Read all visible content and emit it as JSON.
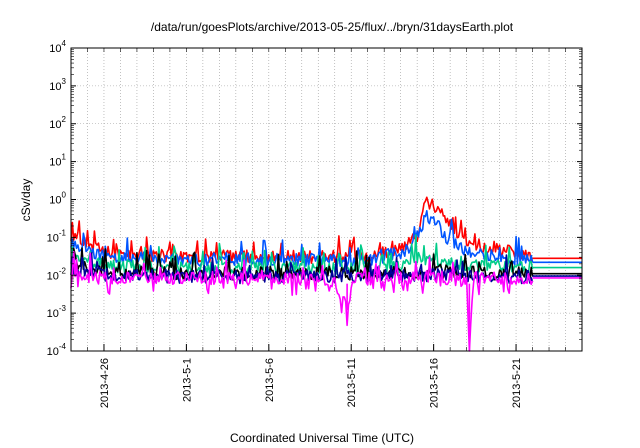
{
  "chart_data": {
    "type": "line",
    "title": "/data/run/goesPlots/archive/2013-05-25/flux/../bryn/31daysEarth.plot",
    "xlabel": "Coordinated Universal Time (UTC)",
    "ylabel": "cSv/day",
    "yscale": "log",
    "ylim": [
      0.0001,
      10000
    ],
    "y_ticks": [
      {
        "base": "10",
        "exp": "-4",
        "value": 0.0001
      },
      {
        "base": "10",
        "exp": "-3",
        "value": 0.001
      },
      {
        "base": "10",
        "exp": "-2",
        "value": 0.01
      },
      {
        "base": "10",
        "exp": "-1",
        "value": 0.1
      },
      {
        "base": "10",
        "exp": "0",
        "value": 1
      },
      {
        "base": "10",
        "exp": "1",
        "value": 10
      },
      {
        "base": "10",
        "exp": "2",
        "value": 100
      },
      {
        "base": "10",
        "exp": "3",
        "value": 1000
      },
      {
        "base": "10",
        "exp": "4",
        "value": 10000
      }
    ],
    "xlim": [
      "2013-04-24",
      "2013-05-25"
    ],
    "x_ticks": [
      "2013-4-26",
      "2013-5-1",
      "2013-5-6",
      "2013-5-11",
      "2013-5-16",
      "2013-5-21"
    ],
    "grid": true,
    "legend": "none",
    "data_end": "2013-05-22",
    "series": [
      {
        "color": "#ff0000",
        "points": [
          [
            "2013-04-24",
            0.12
          ],
          [
            "2013-04-25",
            0.07
          ],
          [
            "2013-04-26",
            0.04
          ],
          [
            "2013-04-28",
            0.035
          ],
          [
            "2013-05-01",
            0.03
          ],
          [
            "2013-05-04",
            0.032
          ],
          [
            "2013-05-07",
            0.03
          ],
          [
            "2013-05-10",
            0.032
          ],
          [
            "2013-05-12",
            0.03
          ],
          [
            "2013-05-14",
            0.05
          ],
          [
            "2013-05-15",
            0.1
          ],
          [
            "2013-05-15T12:00",
            0.9
          ],
          [
            "2013-05-16",
            0.7
          ],
          [
            "2013-05-16T12:00",
            0.4
          ],
          [
            "2013-05-17",
            0.2
          ],
          [
            "2013-05-18",
            0.08
          ],
          [
            "2013-05-19",
            0.06
          ],
          [
            "2013-05-20",
            0.05
          ],
          [
            "2013-05-21",
            0.04
          ],
          [
            "2013-05-22",
            0.03
          ]
        ],
        "flat": 0.028
      },
      {
        "color": "#0055ff",
        "points": [
          [
            "2013-04-24",
            0.08
          ],
          [
            "2013-04-25",
            0.05
          ],
          [
            "2013-04-26",
            0.03
          ],
          [
            "2013-04-28",
            0.028
          ],
          [
            "2013-05-01",
            0.025
          ],
          [
            "2013-05-04",
            0.027
          ],
          [
            "2013-05-07",
            0.025
          ],
          [
            "2013-05-10",
            0.026
          ],
          [
            "2013-05-12",
            0.025
          ],
          [
            "2013-05-14",
            0.04
          ],
          [
            "2013-05-15",
            0.07
          ],
          [
            "2013-05-15T12:00",
            0.4
          ],
          [
            "2013-05-16",
            0.3
          ],
          [
            "2013-05-16T12:00",
            0.15
          ],
          [
            "2013-05-17",
            0.08
          ],
          [
            "2013-05-18",
            0.04
          ],
          [
            "2013-05-19",
            0.035
          ],
          [
            "2013-05-20",
            0.03
          ],
          [
            "2013-05-21",
            0.028
          ],
          [
            "2013-05-22",
            0.025
          ]
        ],
        "flat": 0.022
      },
      {
        "color": "#00cc88",
        "points": [
          [
            "2013-04-24",
            0.03
          ],
          [
            "2013-04-26",
            0.018
          ],
          [
            "2013-05-01",
            0.015
          ],
          [
            "2013-05-06",
            0.016
          ],
          [
            "2013-05-11",
            0.015
          ],
          [
            "2013-05-14",
            0.016
          ],
          [
            "2013-05-15",
            0.03
          ],
          [
            "2013-05-16",
            0.025
          ],
          [
            "2013-05-17",
            0.02
          ],
          [
            "2013-05-19",
            0.017
          ],
          [
            "2013-05-22",
            0.016
          ]
        ],
        "flat": 0.016
      },
      {
        "color": "#000000",
        "points": [
          [
            "2013-04-24",
            0.02
          ],
          [
            "2013-04-26",
            0.012
          ],
          [
            "2013-05-01",
            0.011
          ],
          [
            "2013-05-06",
            0.011
          ],
          [
            "2013-05-11",
            0.011
          ],
          [
            "2013-05-16",
            0.012
          ],
          [
            "2013-05-22",
            0.011
          ]
        ],
        "flat": 0.011
      },
      {
        "color": "#000099",
        "points": [
          [
            "2013-04-24",
            0.015
          ],
          [
            "2013-04-26",
            0.01
          ],
          [
            "2013-05-01",
            0.009
          ],
          [
            "2013-05-06",
            0.009
          ],
          [
            "2013-05-11",
            0.009
          ],
          [
            "2013-05-16",
            0.01
          ],
          [
            "2013-05-22",
            0.009
          ]
        ],
        "flat": 0.0095
      },
      {
        "color": "#ff00ff",
        "points": [
          [
            "2013-04-24",
            0.012
          ],
          [
            "2013-04-26",
            0.008
          ],
          [
            "2013-05-01",
            0.009
          ],
          [
            "2013-05-06",
            0.008
          ],
          [
            "2013-05-10",
            0.007
          ],
          [
            "2013-05-10T18:00",
            0.0012
          ],
          [
            "2013-05-11",
            0.008
          ],
          [
            "2013-05-16",
            0.009
          ],
          [
            "2013-05-18",
            0.007
          ],
          [
            "2013-05-18T04:00",
            0.0001
          ],
          [
            "2013-05-18T10:00",
            0.008
          ],
          [
            "2013-05-22",
            0.008
          ]
        ],
        "flat": 0.0085
      }
    ]
  }
}
